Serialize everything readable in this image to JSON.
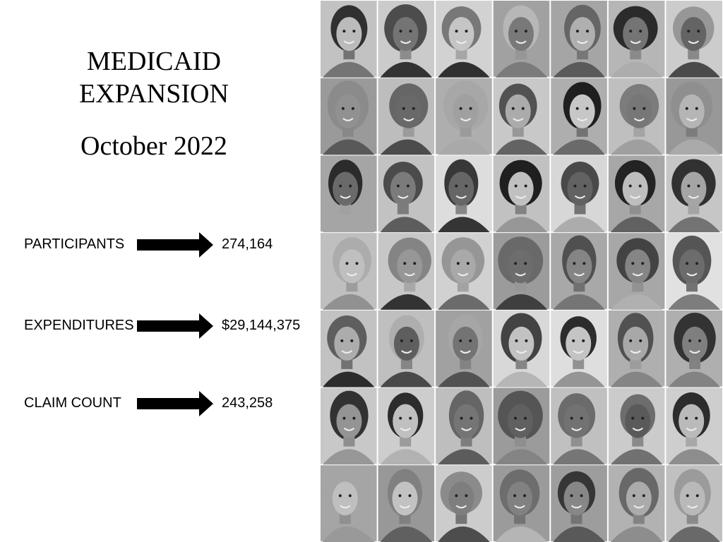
{
  "slide": {
    "title": "MEDICAID EXPANSION",
    "subtitle": "October 2022",
    "metrics": [
      {
        "label": "PARTICIPANTS",
        "value": "274,164"
      },
      {
        "label": "EXPENDITURES",
        "value": "$29,144,375"
      },
      {
        "label": "CLAIM COUNT",
        "value": "243,258"
      }
    ]
  }
}
